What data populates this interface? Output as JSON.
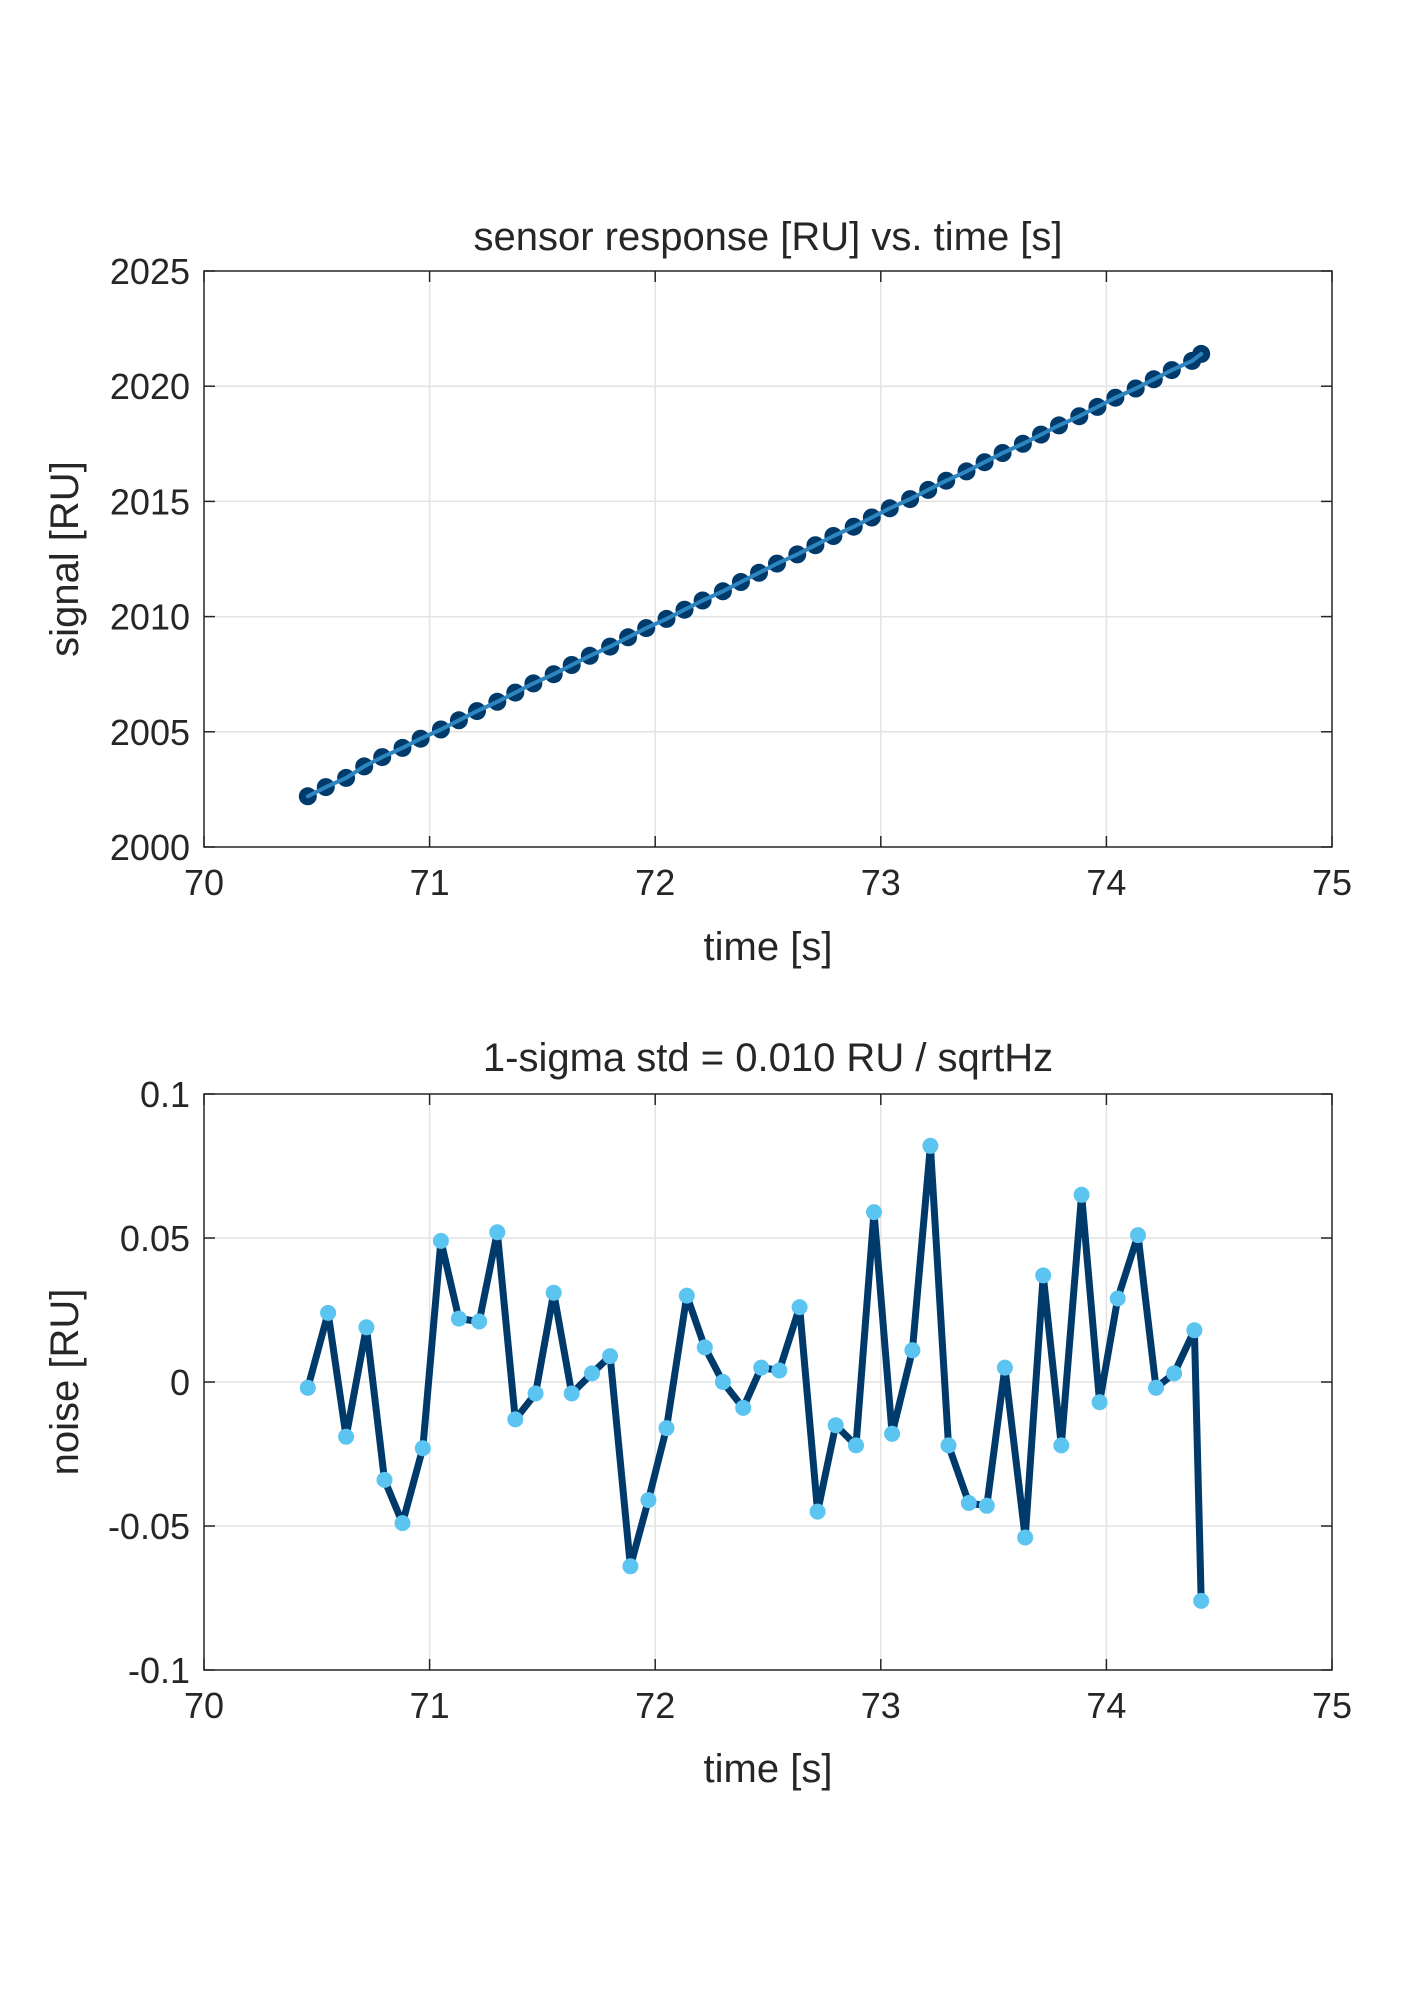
{
  "chart_data": [
    {
      "type": "line",
      "title": "sensor response [RU] vs. time [s]",
      "xlabel": "time [s]",
      "ylabel": "signal [RU]",
      "xlim": [
        70,
        75
      ],
      "ylim": [
        2000,
        2025
      ],
      "xticks": [
        70,
        71,
        72,
        73,
        74,
        75
      ],
      "yticks": [
        2000,
        2005,
        2010,
        2015,
        2020,
        2025
      ],
      "xtick_labels": [
        "70",
        "71",
        "72",
        "73",
        "74",
        "75"
      ],
      "ytick_labels": [
        "2000",
        "2005",
        "2010",
        "2015",
        "2020",
        "2025"
      ],
      "grid": true,
      "line_color": "#2e86c1",
      "marker_color": "#003a6b",
      "series": [
        {
          "x": [
            70.46,
            70.54,
            70.63,
            70.71,
            70.79,
            70.88,
            70.96,
            71.05,
            71.13,
            71.21,
            71.3,
            71.38,
            71.46,
            71.55,
            71.63,
            71.71,
            71.8,
            71.88,
            71.96,
            72.05,
            72.13,
            72.21,
            72.3,
            72.38,
            72.46,
            72.54,
            72.63,
            72.71,
            72.79,
            72.88,
            72.96,
            73.04,
            73.13,
            73.21,
            73.29,
            73.38,
            73.46,
            73.54,
            73.63,
            73.71,
            73.79,
            73.88,
            73.96,
            74.04,
            74.13,
            74.21,
            74.29,
            74.38,
            74.42
          ],
          "y": [
            2002.2,
            2002.6,
            2003.0,
            2003.5,
            2003.9,
            2004.3,
            2004.7,
            2005.1,
            2005.5,
            2005.9,
            2006.3,
            2006.7,
            2007.1,
            2007.5,
            2007.9,
            2008.3,
            2008.7,
            2009.1,
            2009.5,
            2009.9,
            2010.3,
            2010.7,
            2011.1,
            2011.5,
            2011.9,
            2012.3,
            2012.7,
            2013.1,
            2013.5,
            2013.9,
            2014.3,
            2014.7,
            2015.1,
            2015.5,
            2015.9,
            2016.3,
            2016.7,
            2017.1,
            2017.5,
            2017.9,
            2018.3,
            2018.7,
            2019.1,
            2019.5,
            2019.9,
            2020.3,
            2020.7,
            2021.1,
            2021.4
          ]
        }
      ]
    },
    {
      "type": "line",
      "title": "1-sigma std = 0.010 RU / sqrtHz",
      "xlabel": "time [s]",
      "ylabel": "noise [RU]",
      "xlim": [
        70,
        75
      ],
      "ylim": [
        -0.1,
        0.1
      ],
      "xticks": [
        70,
        71,
        72,
        73,
        74,
        75
      ],
      "yticks": [
        -0.1,
        -0.05,
        0,
        0.05,
        0.1
      ],
      "xtick_labels": [
        "70",
        "71",
        "72",
        "73",
        "74",
        "75"
      ],
      "ytick_labels": [
        "-0.1",
        "-0.05",
        "0",
        "0.05",
        "0.1"
      ],
      "grid": true,
      "line_color": "#003a6b",
      "marker_color": "#5bc4f0",
      "series": [
        {
          "x": [
            70.46,
            70.55,
            70.63,
            70.72,
            70.8,
            70.88,
            70.97,
            71.05,
            71.13,
            71.22,
            71.3,
            71.38,
            71.47,
            71.55,
            71.63,
            71.72,
            71.8,
            71.89,
            71.97,
            72.05,
            72.14,
            72.22,
            72.3,
            72.39,
            72.47,
            72.55,
            72.64,
            72.72,
            72.8,
            72.89,
            72.97,
            73.05,
            73.14,
            73.22,
            73.3,
            73.39,
            73.47,
            73.55,
            73.64,
            73.72,
            73.8,
            73.89,
            73.97,
            74.05,
            74.14,
            74.22,
            74.3,
            74.39,
            74.42
          ],
          "y": [
            -0.002,
            0.024,
            -0.019,
            0.019,
            -0.034,
            -0.049,
            -0.023,
            0.049,
            0.022,
            0.021,
            0.052,
            -0.013,
            -0.004,
            0.031,
            -0.004,
            0.003,
            0.009,
            -0.064,
            -0.041,
            -0.016,
            0.03,
            0.012,
            0.0,
            -0.009,
            0.005,
            0.004,
            0.026,
            -0.045,
            -0.015,
            -0.022,
            0.059,
            -0.018,
            0.011,
            0.082,
            -0.022,
            -0.042,
            -0.043,
            0.005,
            -0.054,
            0.037,
            -0.022,
            0.065,
            -0.007,
            0.029,
            0.051,
            -0.002,
            0.003,
            0.018,
            -0.076
          ]
        }
      ]
    }
  ]
}
